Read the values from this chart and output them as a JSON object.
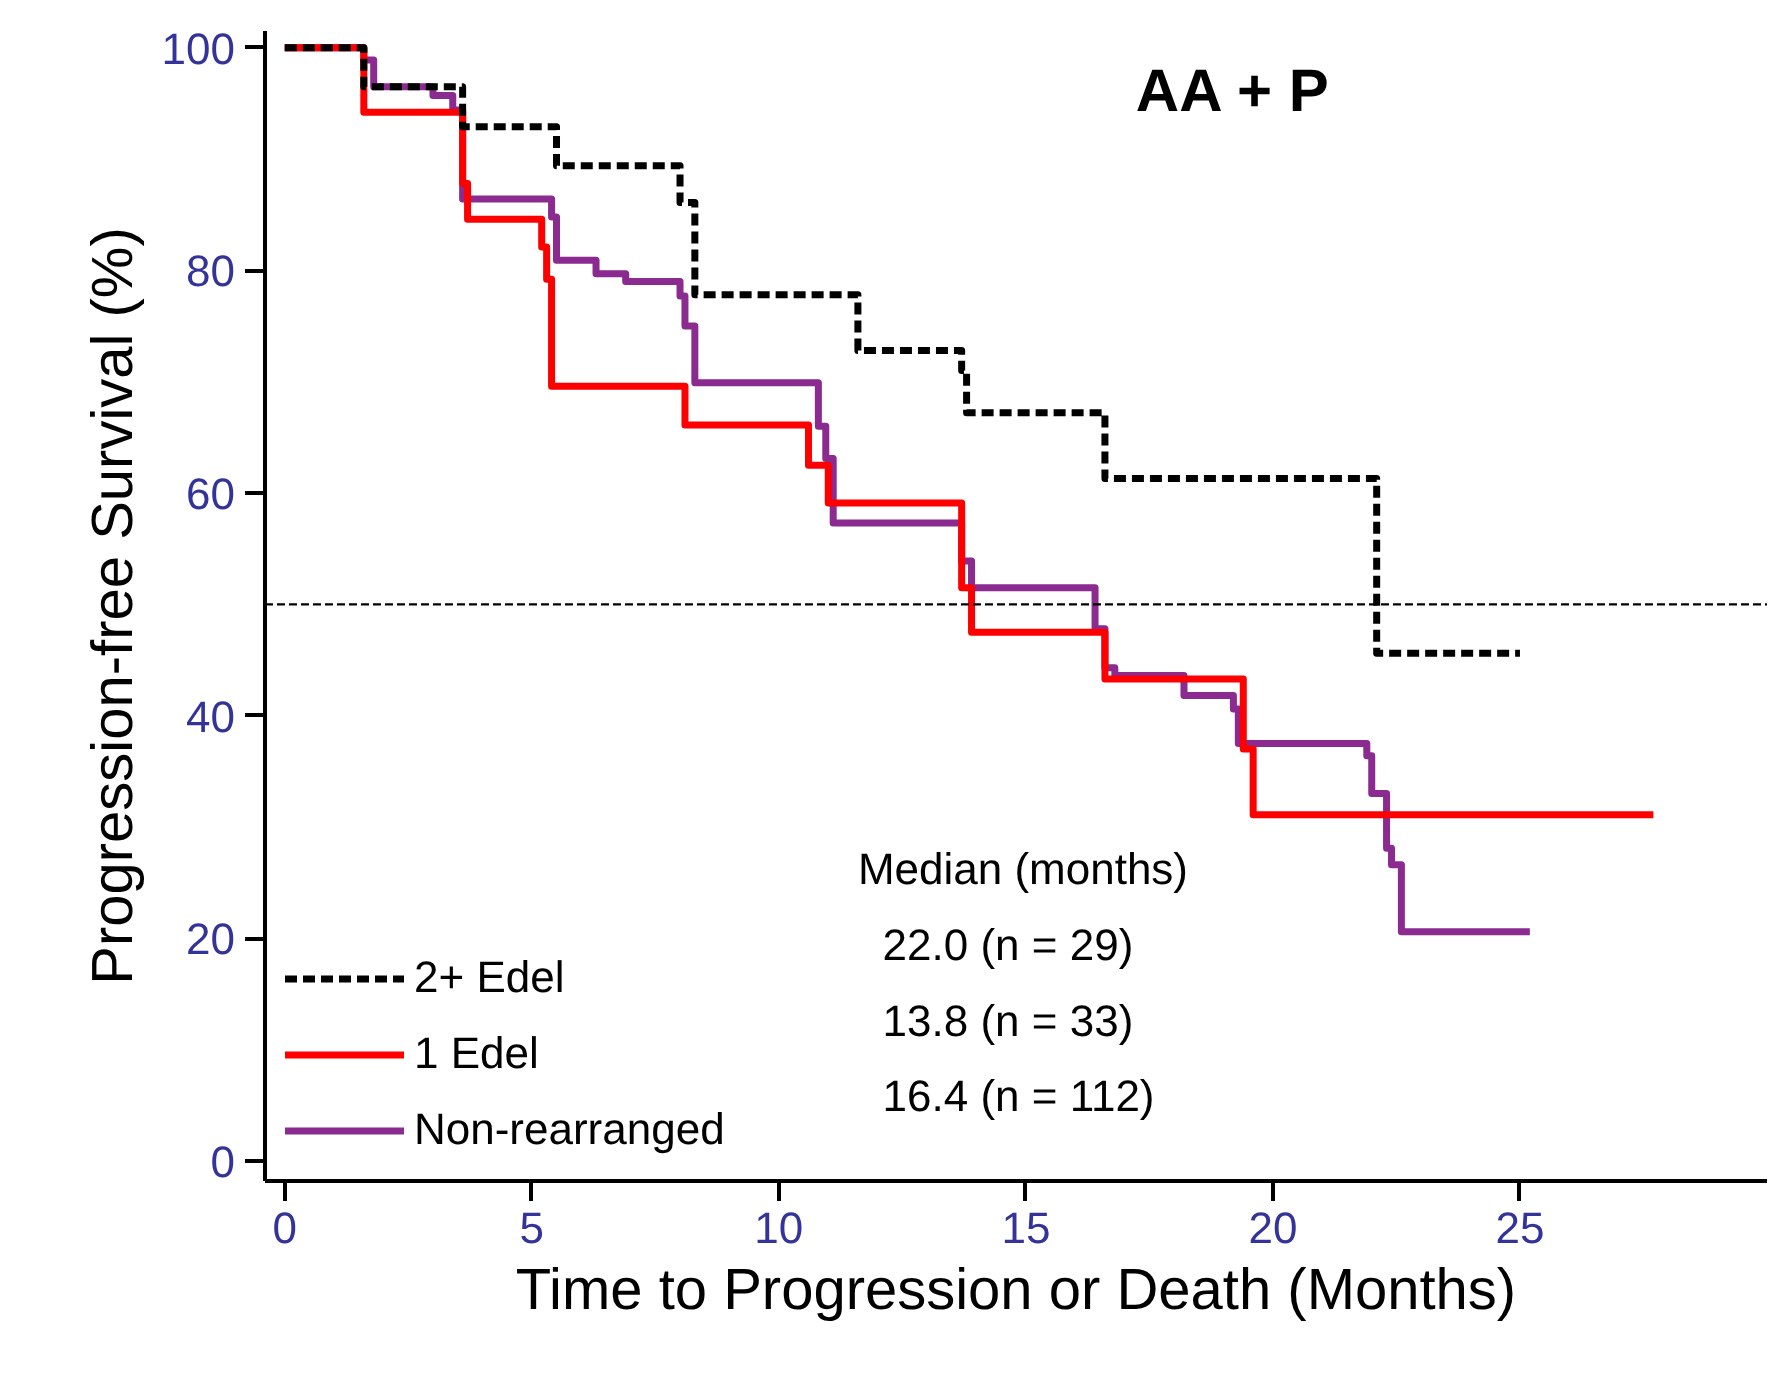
{
  "chart_data": {
    "type": "step",
    "title": "AA + P",
    "xlabel": "Time to Progression or Death (Months)",
    "ylabel": "Progression-free Survival (%)",
    "xlim": [
      -0.4,
      30
    ],
    "ylim": [
      -1.8,
      101.5
    ],
    "xticks": [
      0,
      5,
      10,
      15,
      20,
      25
    ],
    "yticks": [
      0,
      20,
      40,
      60,
      80,
      100
    ],
    "grid": false,
    "legend": "bottom left",
    "series": [
      {
        "name": "2+ Edel",
        "color": "#000000",
        "line_style": "dashed",
        "x": [
          0,
          1.6,
          3.6,
          5.5,
          8.0,
          8.3,
          11.6,
          13.7,
          13.8,
          16.6,
          22.1,
          25.0
        ],
        "values": [
          100,
          96.5,
          92.9,
          89.4,
          86.1,
          77.8,
          72.8,
          71.0,
          67.2,
          61.3,
          45.6,
          45.6
        ]
      },
      {
        "name": "1 Edel",
        "color": "#ff0000",
        "line_style": "solid",
        "x": [
          0,
          1.6,
          3.6,
          3.7,
          5.2,
          5.3,
          5.4,
          8.1,
          10.6,
          11.0,
          13.7,
          13.9,
          16.6,
          19.4,
          19.6,
          27.7
        ],
        "values": [
          100,
          94.2,
          87.8,
          84.6,
          82.1,
          79.2,
          69.6,
          66.1,
          62.5,
          59.1,
          51.5,
          47.5,
          43.3,
          37.0,
          31.1,
          31.1
        ]
      },
      {
        "name": "Non-rearranged",
        "color": "#8b2a8f",
        "line_style": "solid",
        "x": [
          0,
          1.6,
          1.8,
          3.0,
          3.4,
          3.6,
          5.4,
          5.5,
          6.3,
          6.9,
          8.0,
          8.1,
          8.3,
          10.8,
          10.95,
          11.1,
          13.7,
          13.9,
          16.4,
          16.6,
          16.8,
          18.2,
          19.2,
          19.3,
          21.9,
          22.0,
          22.3,
          22.4,
          22.6,
          25.2
        ],
        "values": [
          100,
          98.9,
          96.5,
          95.7,
          94.4,
          86.4,
          84.8,
          80.9,
          79.7,
          79.0,
          77.7,
          75.0,
          69.9,
          66.0,
          63.1,
          57.3,
          53.9,
          51.5,
          47.8,
          44.3,
          43.6,
          41.8,
          40.6,
          37.5,
          36.4,
          33.0,
          28.1,
          26.6,
          20.6,
          20.6
        ]
      }
    ],
    "ref_lines": [
      {
        "axis": "y",
        "value": 50,
        "color": "#000000",
        "line_style": "dashed"
      }
    ],
    "annotations": [
      "Median (months)",
      "22.0 (n = 29)",
      "13.8 (n = 33)",
      "16.4 (n = 112)"
    ]
  }
}
